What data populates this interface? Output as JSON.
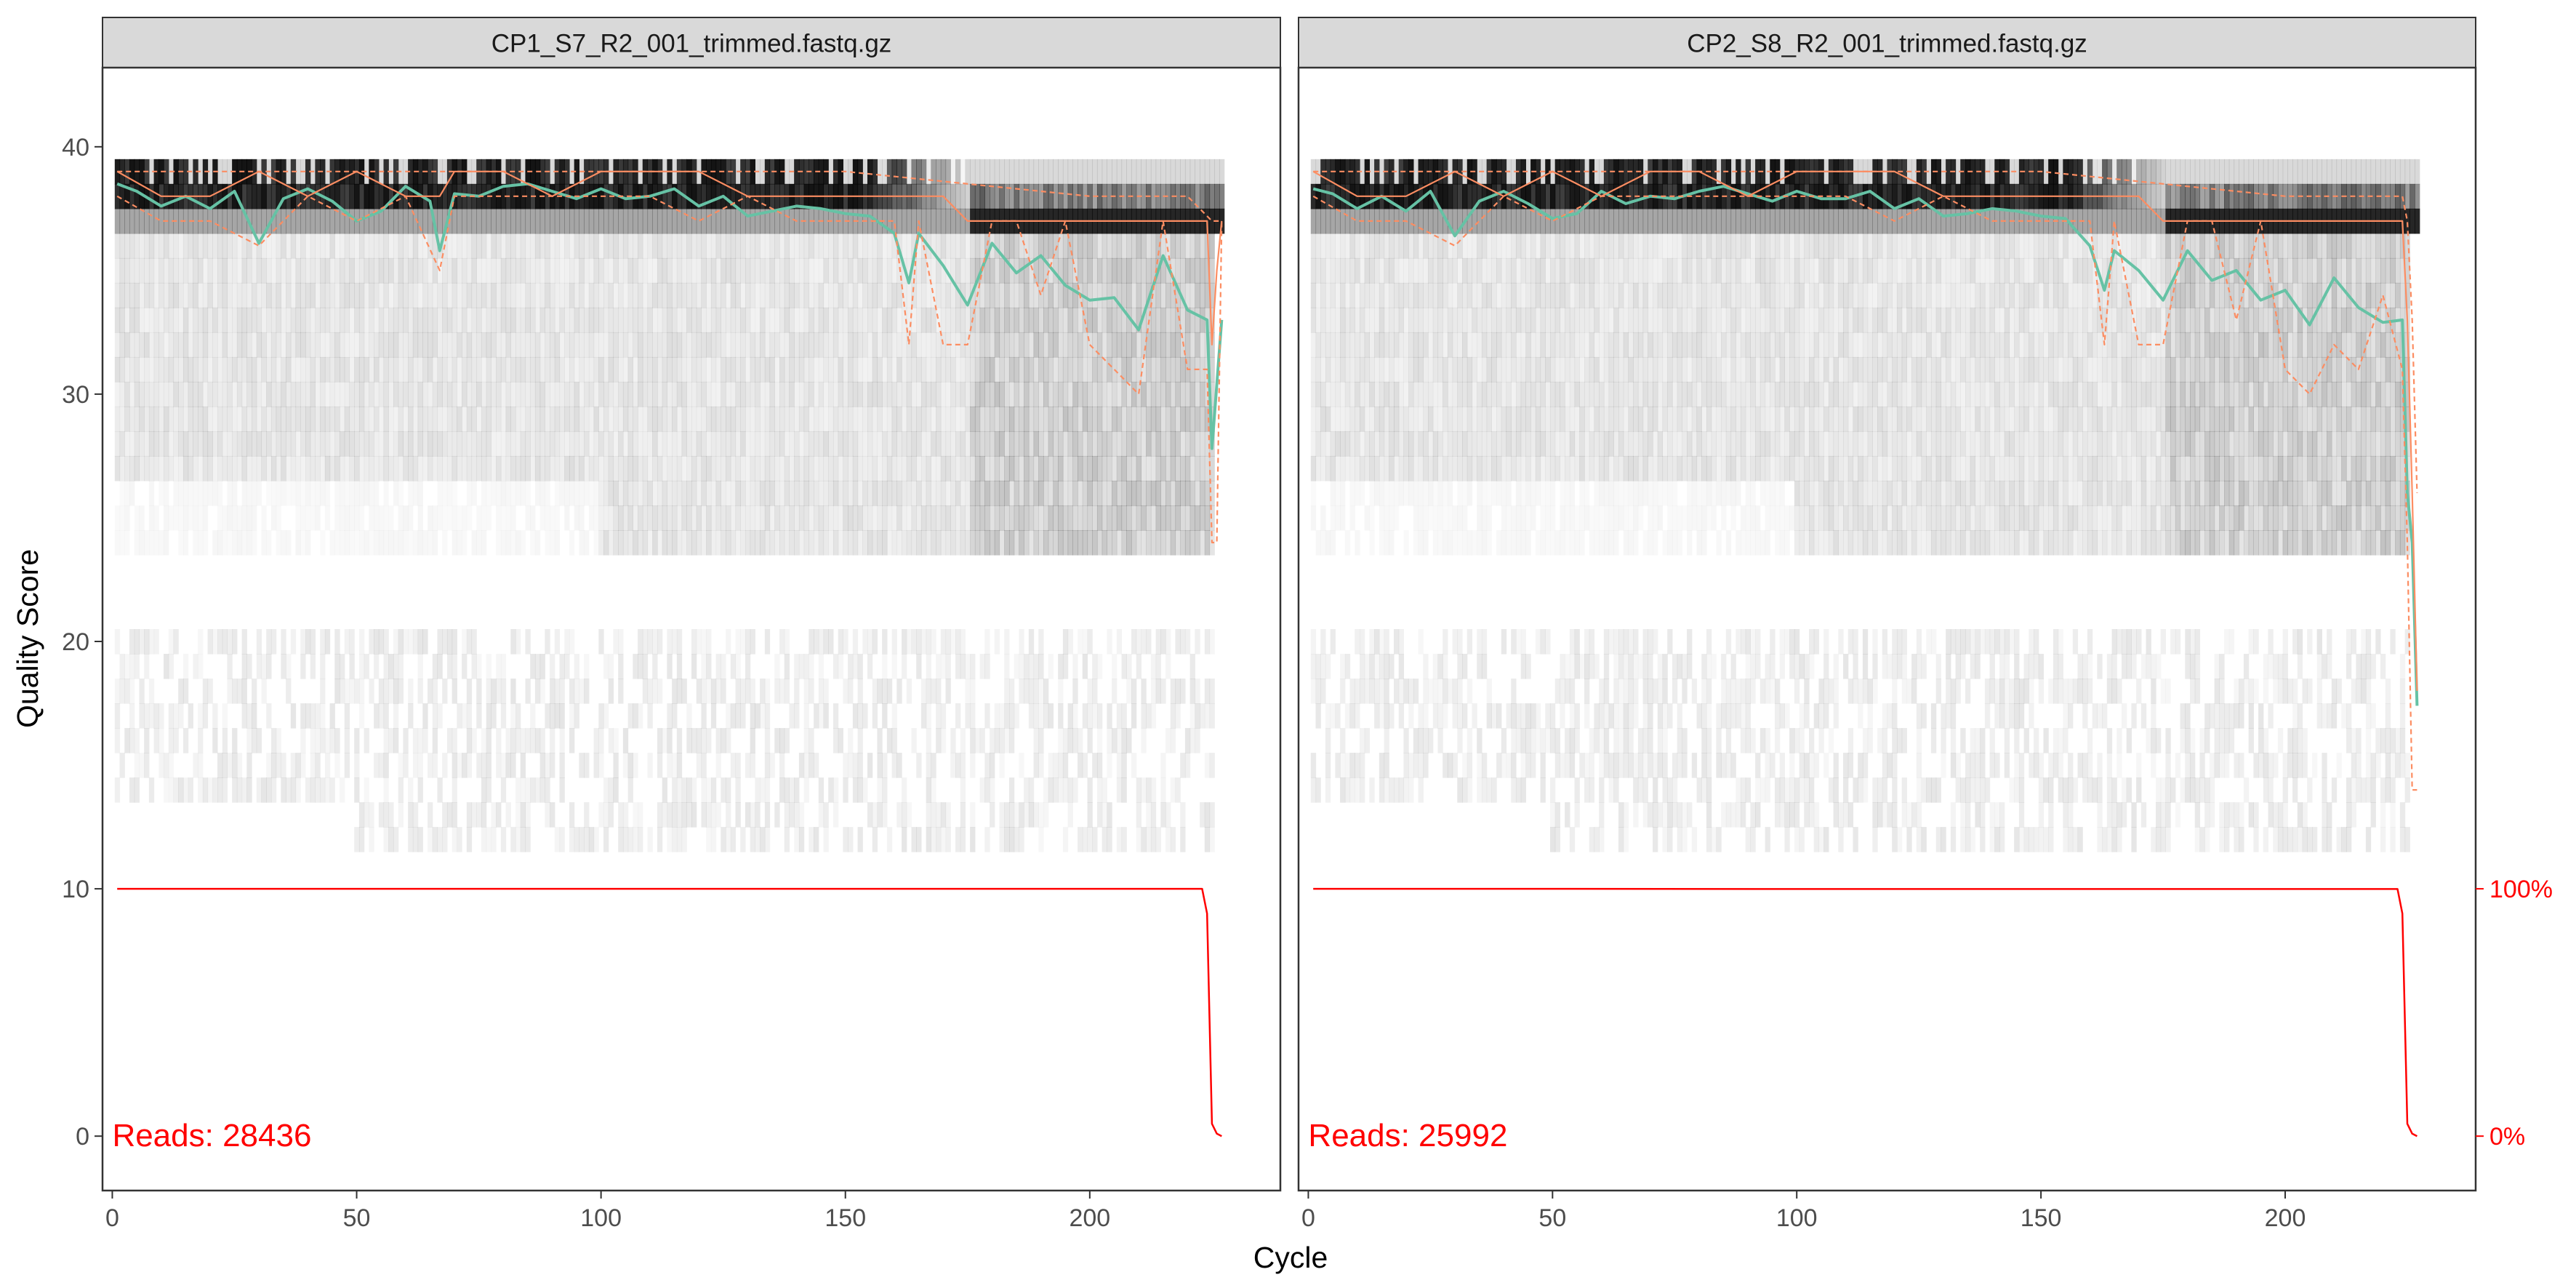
{
  "figure": {
    "xlabel": "Cycle",
    "ylabel": "Quality Score",
    "right_axis_ticks": [
      "100%",
      "0%"
    ]
  },
  "chart_data": [
    {
      "type": "heatmap",
      "title": "CP1_S7_R2_001_trimmed.fastq.gz",
      "xlabel": "Cycle",
      "ylabel": "Quality Score",
      "xlim": [
        -2,
        239
      ],
      "ylim": [
        -2.2,
        43.2
      ],
      "xticks": [
        0,
        50,
        100,
        150,
        200
      ],
      "yticks": [
        0,
        10,
        20,
        30,
        40
      ],
      "reads_label": "Reads:  28436",
      "grid": false,
      "series": [
        {
          "name": "mean",
          "color": "#66c2a5",
          "style": "solid",
          "x": [
            1,
            5,
            10,
            15,
            20,
            25,
            30,
            35,
            40,
            45,
            50,
            55,
            60,
            65,
            67,
            70,
            75,
            80,
            85,
            90,
            95,
            100,
            105,
            110,
            115,
            120,
            125,
            130,
            135,
            140,
            145,
            150,
            155,
            160,
            163,
            165,
            170,
            175,
            180,
            185,
            190,
            195,
            200,
            205,
            210,
            215,
            220,
            224,
            225,
            226,
            227
          ],
          "y": [
            38.5,
            38.2,
            37.6,
            38.0,
            37.5,
            38.2,
            36.1,
            37.9,
            38.3,
            37.8,
            37.0,
            37.4,
            38.4,
            37.8,
            35.8,
            38.1,
            38.0,
            38.4,
            38.5,
            38.2,
            37.9,
            38.3,
            37.9,
            38.0,
            38.3,
            37.6,
            38.0,
            37.2,
            37.4,
            37.6,
            37.5,
            37.3,
            37.2,
            36.5,
            34.5,
            36.5,
            35.2,
            33.6,
            36.1,
            34.9,
            35.6,
            34.4,
            33.8,
            33.9,
            32.6,
            35.6,
            33.4,
            33.0,
            27.8,
            30.4,
            33.0
          ]
        },
        {
          "name": "median",
          "color": "#fc8d62",
          "style": "solid",
          "x": [
            1,
            10,
            20,
            30,
            40,
            50,
            60,
            67,
            70,
            80,
            90,
            100,
            110,
            120,
            130,
            140,
            150,
            160,
            170,
            175,
            180,
            190,
            200,
            210,
            220,
            224,
            225,
            226,
            227
          ],
          "y": [
            39,
            38,
            38,
            39,
            38,
            39,
            38,
            38,
            39,
            39,
            38,
            39,
            39,
            39,
            38,
            38,
            38,
            38,
            38,
            37,
            37,
            37,
            37,
            37,
            37,
            37,
            32,
            35,
            37
          ]
        },
        {
          "name": "quartile-25",
          "color": "#fc8d62",
          "style": "dashed",
          "x": [
            1,
            10,
            20,
            30,
            40,
            50,
            60,
            67,
            70,
            80,
            90,
            100,
            110,
            120,
            130,
            140,
            150,
            160,
            163,
            165,
            170,
            175,
            180,
            185,
            190,
            195,
            200,
            205,
            210,
            215,
            220,
            224,
            225,
            226,
            227
          ],
          "y": [
            38,
            37,
            37,
            36,
            38,
            37,
            38,
            35,
            38,
            38,
            38,
            38,
            38,
            37,
            38,
            37,
            37,
            37,
            32,
            37,
            32,
            32,
            37,
            37,
            34,
            37,
            32,
            31,
            30,
            37,
            31,
            31,
            24,
            24,
            37
          ]
        },
        {
          "name": "quartile-75",
          "color": "#fc8d62",
          "style": "dashed",
          "x": [
            1,
            50,
            100,
            150,
            200,
            220,
            225,
            227
          ],
          "y": [
            39,
            39,
            39,
            39,
            38,
            38,
            37,
            37
          ]
        },
        {
          "name": "reads",
          "color": "#ff0000",
          "style": "solid",
          "x": [
            1,
            50,
            100,
            150,
            200,
            223,
            224,
            225,
            226,
            227
          ],
          "y": [
            100,
            100,
            100,
            100,
            100,
            100,
            90,
            5,
            1,
            0
          ]
        }
      ]
    },
    {
      "type": "heatmap",
      "title": "CP2_S8_R2_001_trimmed.fastq.gz",
      "xlabel": "Cycle",
      "ylabel": "Quality Score",
      "xlim": [
        -2,
        239
      ],
      "ylim": [
        -2.2,
        43.2
      ],
      "xticks": [
        0,
        50,
        100,
        150,
        200
      ],
      "yticks": [
        0,
        10,
        20,
        30,
        40
      ],
      "reads_label": "Reads:  25992",
      "grid": false,
      "series": [
        {
          "name": "mean",
          "color": "#66c2a5",
          "style": "solid",
          "x": [
            1,
            5,
            10,
            15,
            20,
            25,
            30,
            35,
            40,
            45,
            50,
            55,
            60,
            65,
            70,
            75,
            80,
            85,
            90,
            95,
            100,
            105,
            110,
            115,
            120,
            125,
            130,
            135,
            140,
            145,
            150,
            155,
            160,
            163,
            165,
            170,
            175,
            180,
            185,
            190,
            195,
            200,
            205,
            210,
            215,
            220,
            224,
            225,
            226,
            227
          ],
          "y": [
            38.3,
            38.1,
            37.5,
            38.0,
            37.4,
            38.2,
            36.4,
            37.8,
            38.2,
            37.7,
            37.1,
            37.3,
            38.2,
            37.7,
            38.0,
            37.9,
            38.2,
            38.4,
            38.1,
            37.8,
            38.2,
            37.9,
            37.9,
            38.2,
            37.5,
            37.9,
            37.2,
            37.3,
            37.5,
            37.4,
            37.2,
            37.1,
            36.0,
            34.2,
            35.8,
            35.0,
            33.8,
            35.8,
            34.6,
            35.0,
            33.8,
            34.2,
            32.8,
            34.7,
            33.5,
            32.9,
            33.0,
            26.0,
            24.0,
            17.4
          ]
        },
        {
          "name": "median",
          "color": "#fc8d62",
          "style": "solid",
          "x": [
            1,
            10,
            20,
            30,
            40,
            50,
            60,
            70,
            80,
            90,
            100,
            110,
            120,
            130,
            140,
            150,
            160,
            170,
            175,
            180,
            190,
            200,
            210,
            220,
            224,
            225,
            226,
            227
          ],
          "y": [
            39,
            38,
            38,
            39,
            38,
            39,
            38,
            39,
            39,
            38,
            39,
            39,
            39,
            38,
            38,
            38,
            38,
            38,
            37,
            37,
            37,
            37,
            37,
            37,
            37,
            33,
            26,
            18
          ]
        },
        {
          "name": "quartile-25",
          "color": "#fc8d62",
          "style": "dashed",
          "x": [
            1,
            10,
            20,
            30,
            40,
            50,
            60,
            70,
            80,
            90,
            100,
            110,
            120,
            130,
            140,
            150,
            160,
            163,
            165,
            170,
            175,
            180,
            185,
            190,
            195,
            200,
            205,
            210,
            215,
            220,
            224,
            225,
            226,
            227
          ],
          "y": [
            38,
            37,
            37,
            36,
            38,
            37,
            38,
            38,
            38,
            38,
            38,
            38,
            37,
            38,
            37,
            37,
            37,
            32,
            37,
            32,
            32,
            37,
            37,
            33,
            37,
            31,
            30,
            32,
            31,
            34,
            31,
            24,
            14,
            14
          ]
        },
        {
          "name": "quartile-75",
          "color": "#fc8d62",
          "style": "dashed",
          "x": [
            1,
            50,
            100,
            150,
            200,
            220,
            224,
            225,
            226,
            227
          ],
          "y": [
            39,
            39,
            39,
            39,
            38,
            38,
            38,
            37,
            33,
            26
          ]
        },
        {
          "name": "reads",
          "color": "#ff0000",
          "style": "solid",
          "x": [
            1,
            50,
            100,
            150,
            200,
            223,
            224,
            225,
            226,
            227
          ],
          "y": [
            100,
            100,
            99.9,
            99.9,
            99.9,
            99.9,
            90,
            5,
            1,
            0
          ]
        }
      ]
    }
  ]
}
